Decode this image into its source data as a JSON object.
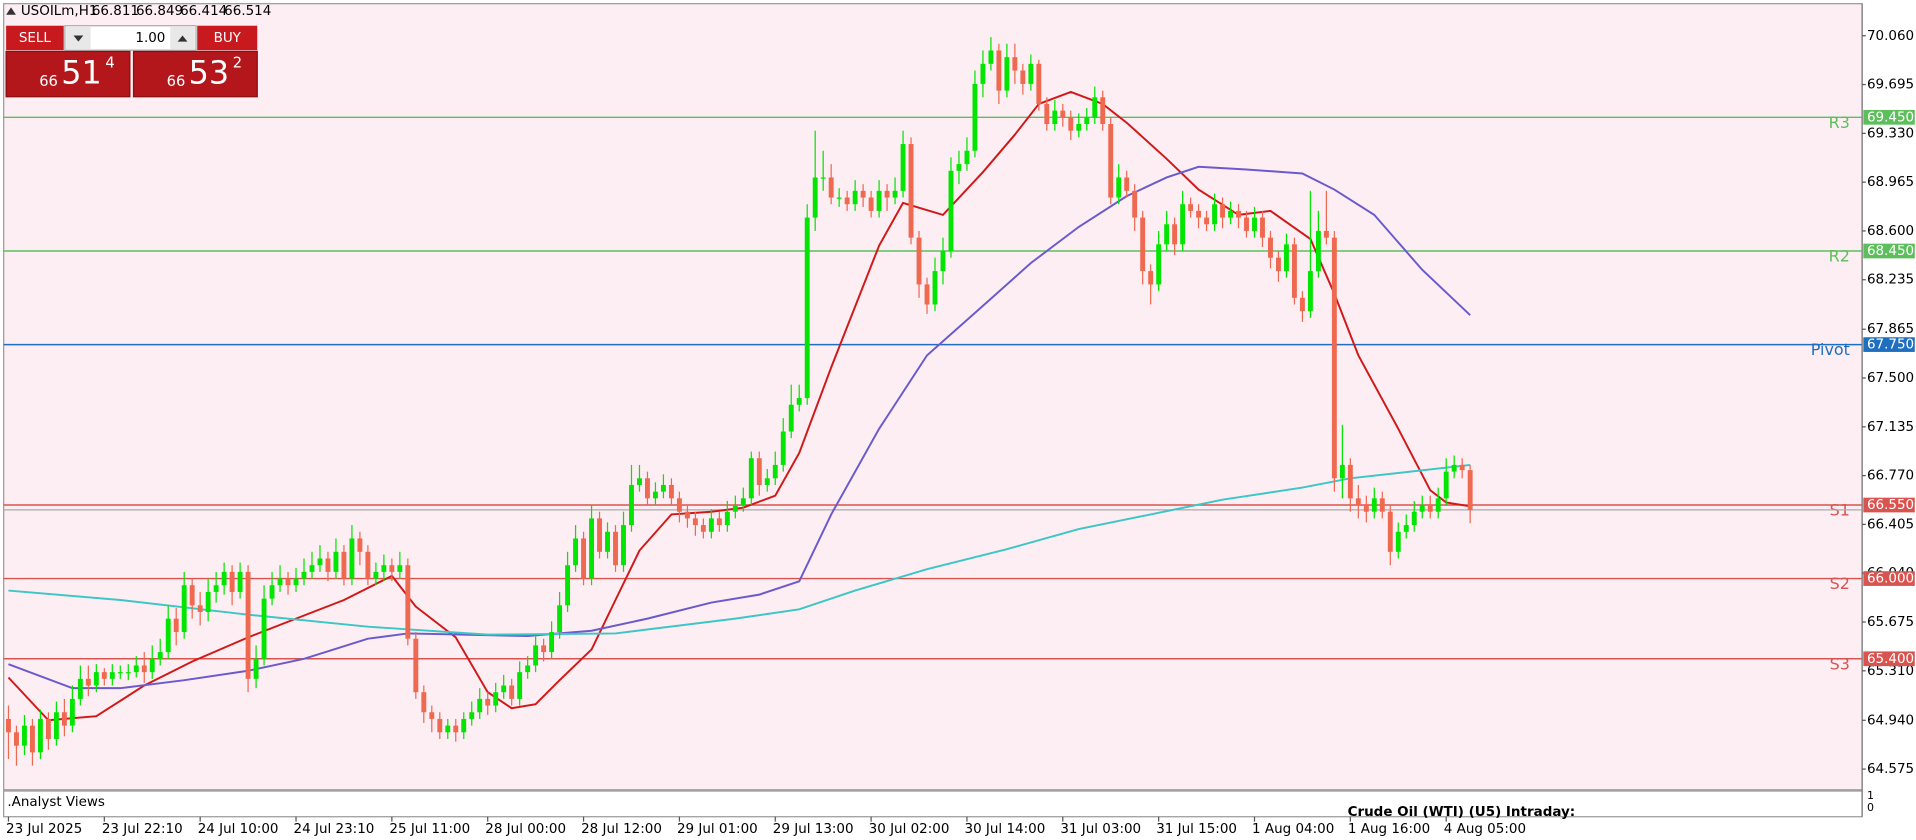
{
  "chart_data": {
    "type": "candlestick",
    "symbol": "USOILm,H1",
    "bull_color": "#00e600",
    "bear_color": "#ef6850",
    "background": "#fdeef3",
    "xlim": [
      -0.6,
      232.07
    ],
    "ylim": [
      64.42,
      70.3
    ],
    "xticks": [
      {
        "value": 0,
        "label": "23 Jul 2025"
      },
      {
        "value": 12,
        "label": "23 Jul 22:10"
      },
      {
        "value": 24,
        "label": "24 Jul 10:00"
      },
      {
        "value": 36,
        "label": "24 Jul 23:10"
      },
      {
        "value": 48,
        "label": "25 Jul 11:00"
      },
      {
        "value": 60,
        "label": "28 Jul 00:00"
      },
      {
        "value": 72,
        "label": "28 Jul 12:00"
      },
      {
        "value": 84,
        "label": "29 Jul 01:00"
      },
      {
        "value": 96,
        "label": "29 Jul 13:00"
      },
      {
        "value": 108,
        "label": "30 Jul 02:00"
      },
      {
        "value": 120,
        "label": "30 Jul 14:00"
      },
      {
        "value": 132,
        "label": "31 Jul 03:00"
      },
      {
        "value": 144,
        "label": "31 Jul 15:00"
      },
      {
        "value": 156,
        "label": "1 Aug 04:00"
      },
      {
        "value": 168,
        "label": "1 Aug 16:00"
      },
      {
        "value": 180,
        "label": "4 Aug 05:00"
      }
    ],
    "yticks": [
      {
        "value": 70.06,
        "label": "70.060"
      },
      {
        "value": 69.695,
        "label": "69.695"
      },
      {
        "value": 69.33,
        "label": "69.330"
      },
      {
        "value": 68.965,
        "label": "68.965"
      },
      {
        "value": 68.6,
        "label": "68.600"
      },
      {
        "value": 68.235,
        "label": "68.235"
      },
      {
        "value": 67.865,
        "label": "67.865"
      },
      {
        "value": 67.5,
        "label": "67.500"
      },
      {
        "value": 67.135,
        "label": "67.135"
      },
      {
        "value": 66.77,
        "label": "66.770"
      },
      {
        "value": 66.405,
        "label": "66.405"
      },
      {
        "value": 66.04,
        "label": "66.040"
      },
      {
        "value": 65.675,
        "label": "65.675"
      },
      {
        "value": 65.31,
        "label": "65.310"
      },
      {
        "value": 64.94,
        "label": "64.940"
      },
      {
        "value": 64.575,
        "label": "64.575"
      }
    ],
    "open": [
      64.95,
      64.85,
      64.75,
      64.9,
      64.7,
      64.95,
      64.8,
      65.0,
      64.9,
      65.1,
      65.25,
      65.2,
      65.3,
      65.25,
      65.3,
      65.3,
      65.3,
      65.35,
      65.3,
      65.4,
      65.45,
      65.7,
      65.6,
      65.95,
      65.8,
      65.75,
      65.9,
      65.95,
      66.05,
      65.9,
      66.05,
      65.25,
      65.4,
      65.85,
      65.95,
      66.0,
      65.95,
      66.0,
      66.05,
      66.1,
      66.15,
      66.05,
      66.2,
      66.0,
      66.3,
      66.2,
      66.0,
      66.05,
      66.1,
      66.05,
      66.1,
      65.55,
      65.15,
      65.0,
      64.95,
      64.85,
      64.9,
      64.85,
      64.95,
      65.0,
      65.1,
      65.05,
      65.15,
      65.2,
      65.1,
      65.3,
      65.35,
      65.5,
      65.45,
      65.6,
      65.8,
      66.1,
      66.3,
      66.0,
      66.45,
      66.2,
      66.35,
      66.1,
      66.4,
      66.7,
      66.75,
      66.6,
      66.65,
      66.7,
      66.6,
      66.5,
      66.45,
      66.4,
      66.35,
      66.45,
      66.4,
      66.5,
      66.55,
      66.6,
      66.9,
      66.7,
      66.75,
      66.85,
      67.1,
      67.3,
      67.35,
      68.7,
      69.0,
      69.0,
      68.85,
      68.85,
      68.8,
      68.9,
      68.85,
      68.75,
      68.9,
      68.85,
      68.9,
      69.25,
      68.55,
      68.2,
      68.05,
      68.3,
      68.45,
      69.05,
      69.1,
      69.2,
      69.7,
      69.85,
      69.95,
      69.65,
      69.9,
      69.8,
      69.7,
      69.85,
      69.55,
      69.4,
      69.5,
      69.45,
      69.35,
      69.4,
      69.45,
      69.6,
      69.4,
      68.85,
      69.0,
      68.9,
      68.7,
      68.3,
      68.2,
      68.5,
      68.65,
      68.5,
      68.8,
      68.75,
      68.7,
      68.65,
      68.8,
      68.7,
      68.75,
      68.7,
      68.6,
      68.7,
      68.55,
      68.4,
      68.3,
      68.5,
      68.1,
      68.0,
      68.3,
      68.6,
      68.55,
      66.75,
      66.85,
      66.6,
      66.55,
      66.5,
      66.6,
      66.5,
      66.2,
      66.35,
      66.4,
      66.5,
      66.55,
      66.5,
      66.6,
      66.8,
      66.85,
      66.811
    ],
    "high": [
      65.05,
      64.9,
      64.98,
      64.95,
      65.02,
      65.0,
      65.08,
      65.1,
      65.2,
      65.35,
      65.35,
      65.36,
      65.33,
      65.36,
      65.35,
      65.36,
      65.42,
      65.45,
      65.5,
      65.55,
      65.8,
      65.78,
      66.05,
      66.0,
      65.9,
      66.0,
      66.05,
      66.12,
      66.1,
      66.12,
      66.1,
      65.5,
      65.95,
      66.05,
      66.1,
      66.05,
      66.08,
      66.15,
      66.2,
      66.25,
      66.2,
      66.3,
      66.25,
      66.4,
      66.35,
      66.25,
      66.12,
      66.18,
      66.15,
      66.2,
      66.15,
      65.6,
      65.2,
      65.05,
      65.0,
      64.95,
      64.95,
      65.0,
      65.08,
      65.18,
      65.15,
      65.22,
      65.28,
      65.25,
      65.38,
      65.42,
      65.58,
      65.55,
      65.68,
      65.9,
      66.2,
      66.4,
      66.35,
      66.55,
      66.5,
      66.42,
      66.4,
      66.5,
      66.85,
      66.85,
      66.8,
      66.72,
      66.78,
      66.75,
      66.65,
      66.55,
      66.5,
      66.45,
      66.52,
      66.5,
      66.58,
      66.62,
      66.68,
      66.95,
      66.95,
      66.82,
      66.95,
      67.2,
      67.45,
      67.45,
      68.8,
      69.35,
      69.2,
      69.1,
      68.92,
      68.9,
      68.98,
      68.95,
      68.9,
      68.98,
      68.95,
      69.0,
      69.35,
      69.3,
      68.6,
      68.25,
      68.4,
      68.55,
      69.15,
      69.2,
      69.3,
      69.8,
      69.95,
      70.05,
      70.0,
      70.0,
      70.0,
      69.85,
      69.92,
      69.88,
      69.6,
      69.58,
      69.55,
      69.5,
      69.48,
      69.52,
      69.68,
      69.65,
      69.45,
      69.1,
      69.05,
      68.95,
      68.75,
      68.35,
      68.6,
      68.75,
      68.7,
      68.9,
      68.85,
      68.8,
      68.75,
      68.88,
      68.85,
      68.82,
      68.8,
      68.75,
      68.78,
      68.75,
      68.6,
      68.45,
      68.58,
      68.55,
      68.15,
      68.9,
      68.75,
      68.9,
      68.6,
      67.15,
      66.9,
      66.7,
      66.62,
      66.68,
      66.65,
      66.55,
      66.42,
      66.48,
      66.58,
      66.62,
      66.62,
      66.68,
      66.9,
      66.92,
      66.9,
      66.849
    ],
    "low": [
      64.65,
      64.6,
      64.68,
      64.6,
      64.65,
      64.72,
      64.75,
      64.82,
      64.85,
      65.05,
      65.12,
      65.15,
      65.2,
      65.2,
      65.25,
      65.24,
      65.26,
      65.22,
      65.25,
      65.35,
      65.4,
      65.5,
      65.55,
      65.7,
      65.65,
      65.68,
      65.82,
      65.88,
      65.8,
      65.85,
      65.15,
      65.18,
      65.35,
      65.8,
      65.9,
      65.88,
      65.9,
      65.95,
      66.0,
      66.05,
      65.98,
      66.0,
      65.95,
      65.95,
      66.1,
      65.95,
      65.95,
      65.98,
      65.98,
      66.0,
      65.5,
      65.1,
      64.92,
      64.85,
      64.8,
      64.8,
      64.78,
      64.8,
      64.9,
      64.95,
      64.98,
      65.0,
      65.1,
      65.05,
      65.05,
      65.25,
      65.3,
      65.38,
      65.4,
      65.55,
      65.75,
      66.05,
      65.95,
      65.95,
      66.15,
      66.15,
      66.05,
      66.05,
      66.35,
      66.65,
      66.55,
      66.55,
      66.6,
      66.55,
      66.42,
      66.38,
      66.32,
      66.3,
      66.3,
      66.35,
      66.35,
      66.45,
      66.5,
      66.55,
      66.62,
      66.65,
      66.7,
      66.8,
      67.05,
      67.25,
      67.3,
      68.6,
      68.9,
      68.8,
      68.78,
      68.75,
      68.75,
      68.78,
      68.7,
      68.7,
      68.75,
      68.8,
      68.85,
      68.5,
      68.1,
      67.98,
      68.0,
      68.2,
      68.4,
      68.95,
      69.05,
      69.15,
      69.6,
      69.8,
      69.55,
      69.6,
      69.7,
      69.62,
      69.65,
      69.5,
      69.35,
      69.35,
      69.38,
      69.28,
      69.3,
      69.35,
      69.4,
      69.35,
      68.8,
      68.8,
      68.85,
      68.6,
      68.2,
      68.05,
      68.15,
      68.45,
      68.42,
      68.45,
      68.7,
      68.62,
      68.6,
      68.6,
      68.62,
      68.65,
      68.62,
      68.55,
      68.55,
      68.48,
      68.32,
      68.22,
      68.25,
      68.05,
      67.92,
      67.95,
      68.25,
      68.5,
      66.65,
      66.6,
      66.5,
      66.45,
      66.42,
      66.45,
      66.45,
      66.1,
      66.15,
      66.3,
      66.35,
      66.45,
      66.45,
      66.45,
      66.55,
      66.75,
      66.75,
      66.414
    ],
    "close": [
      64.85,
      64.75,
      64.9,
      64.7,
      64.95,
      64.8,
      65.0,
      64.9,
      65.1,
      65.25,
      65.2,
      65.3,
      65.25,
      65.3,
      65.3,
      65.3,
      65.35,
      65.3,
      65.4,
      65.45,
      65.7,
      65.6,
      65.95,
      65.8,
      65.75,
      65.9,
      65.95,
      66.05,
      65.9,
      66.05,
      65.25,
      65.4,
      65.85,
      65.95,
      66.0,
      65.95,
      66.0,
      66.05,
      66.1,
      66.15,
      66.05,
      66.2,
      66.0,
      66.3,
      66.2,
      66.0,
      66.05,
      66.1,
      66.05,
      66.1,
      65.55,
      65.15,
      65.0,
      64.95,
      64.85,
      64.9,
      64.85,
      64.95,
      65.0,
      65.1,
      65.05,
      65.15,
      65.2,
      65.1,
      65.3,
      65.35,
      65.5,
      65.45,
      65.6,
      65.8,
      66.1,
      66.3,
      66.0,
      66.45,
      66.2,
      66.35,
      66.1,
      66.4,
      66.7,
      66.75,
      66.6,
      66.65,
      66.7,
      66.6,
      66.5,
      66.45,
      66.4,
      66.35,
      66.45,
      66.4,
      66.5,
      66.55,
      66.6,
      66.9,
      66.7,
      66.75,
      66.85,
      67.1,
      67.3,
      67.35,
      68.7,
      69.0,
      69.0,
      68.85,
      68.85,
      68.8,
      68.9,
      68.85,
      68.75,
      68.9,
      68.85,
      68.9,
      69.25,
      68.55,
      68.2,
      68.05,
      68.3,
      68.45,
      69.05,
      69.1,
      69.2,
      69.7,
      69.85,
      69.95,
      69.65,
      69.9,
      69.8,
      69.7,
      69.85,
      69.55,
      69.4,
      69.5,
      69.45,
      69.35,
      69.4,
      69.45,
      69.6,
      69.4,
      68.85,
      69.0,
      68.9,
      68.7,
      68.3,
      68.2,
      68.5,
      68.65,
      68.5,
      68.8,
      68.75,
      68.7,
      68.65,
      68.8,
      68.7,
      68.75,
      68.7,
      68.6,
      68.7,
      68.55,
      68.4,
      68.3,
      68.5,
      68.1,
      68.0,
      68.3,
      68.6,
      68.55,
      66.75,
      66.85,
      66.6,
      66.55,
      66.5,
      66.6,
      66.5,
      66.2,
      66.35,
      66.4,
      66.5,
      66.55,
      66.5,
      66.6,
      66.8,
      66.85,
      66.811,
      66.514
    ],
    "lines": [
      {
        "color": "#d01818",
        "x": [
          0,
          5,
          11,
          17,
          23,
          30,
          36,
          42,
          48,
          51,
          56,
          60,
          63,
          66,
          69,
          73,
          76,
          79,
          83,
          88,
          92,
          96,
          99,
          103,
          109,
          112,
          117,
          122,
          126,
          129,
          133,
          137,
          140,
          145,
          149,
          154,
          158,
          163,
          166,
          169,
          174,
          178,
          180,
          183
        ],
        "values": [
          65.26,
          64.94,
          64.97,
          65.2,
          65.38,
          65.56,
          65.7,
          65.84,
          66.02,
          65.79,
          65.56,
          65.15,
          65.03,
          65.06,
          65.24,
          65.47,
          65.84,
          66.21,
          66.48,
          66.5,
          66.53,
          66.62,
          66.94,
          67.58,
          68.49,
          68.81,
          68.72,
          69.04,
          69.32,
          69.55,
          69.64,
          69.55,
          69.41,
          69.14,
          68.91,
          68.72,
          68.75,
          68.54,
          68.13,
          67.67,
          67.12,
          66.66,
          66.57,
          66.54
        ]
      },
      {
        "color": "#6a5acd",
        "x": [
          0,
          8,
          14,
          22,
          30,
          37,
          45,
          50,
          57,
          65,
          73,
          80,
          88,
          94,
          99,
          103,
          109,
          115,
          122,
          128,
          134,
          140,
          145,
          149,
          155,
          162,
          166,
          171,
          177,
          183
        ],
        "values": [
          65.36,
          65.18,
          65.18,
          65.24,
          65.31,
          65.4,
          65.55,
          65.59,
          65.58,
          65.57,
          65.61,
          65.7,
          65.82,
          65.88,
          65.98,
          66.48,
          67.12,
          67.67,
          68.04,
          68.36,
          68.63,
          68.86,
          69.0,
          69.08,
          69.06,
          69.03,
          68.91,
          68.72,
          68.31,
          67.97
        ]
      },
      {
        "color": "#3cc6c6",
        "x": [
          0,
          14,
          30,
          45,
          60,
          76,
          91,
          99,
          106,
          115,
          125,
          134,
          143,
          152,
          162,
          168,
          183
        ],
        "values": [
          65.91,
          65.84,
          65.73,
          65.64,
          65.58,
          65.59,
          65.7,
          65.77,
          65.91,
          66.07,
          66.22,
          66.37,
          66.48,
          66.59,
          66.68,
          66.75,
          66.85
        ]
      }
    ],
    "levels": [
      {
        "name": "R3",
        "value": 69.45,
        "value_label": "69.450",
        "color": "#5cbf5c"
      },
      {
        "name": "R2",
        "value": 68.45,
        "value_label": "68.450",
        "color": "#5cbf5c"
      },
      {
        "name": "Pivot",
        "value": 67.75,
        "value_label": "67.750",
        "color": "#1f6fc0"
      },
      {
        "name": "S1",
        "value": 66.55,
        "value_label": "66.550",
        "color": "#d9534f"
      },
      {
        "name": "S2",
        "value": 66.0,
        "value_label": "66.000",
        "color": "#d9534f"
      },
      {
        "name": "S3",
        "value": 65.4,
        "value_label": "65.400",
        "color": "#d9534f"
      }
    ],
    "indicator_window": {
      "title": ".Analyst Views",
      "yticks": [
        1,
        0
      ],
      "annotation": "Crude Oil (WTI) (U5) Intraday:"
    }
  },
  "trade_panel": {
    "sell": "SELL",
    "buy": "BUY",
    "lot": "1.00",
    "bid": {
      "big_figure": "66",
      "pips": "51",
      "point": "4"
    },
    "ask": {
      "big_figure": "66",
      "pips": "53",
      "point": "2"
    }
  }
}
